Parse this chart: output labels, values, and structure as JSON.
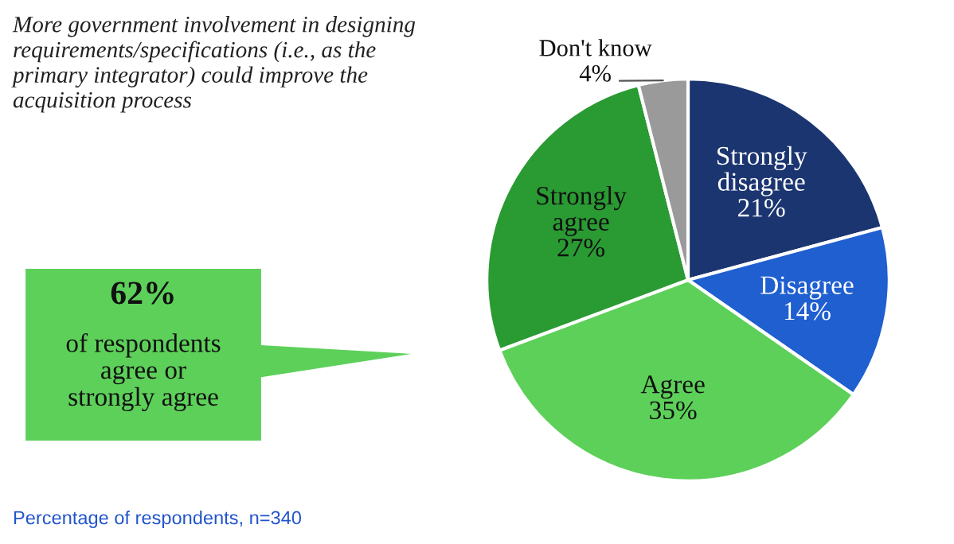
{
  "chart_data": {
    "type": "pie",
    "title": "More government involvement in designing requirements/specifications (i.e., as the primary integrator) could improve the acquisition process",
    "categories": [
      "Strongly disagree",
      "Disagree",
      "Agree",
      "Strongly agree",
      "Don't know"
    ],
    "values": [
      21,
      14,
      35,
      27,
      4
    ],
    "value_labels": [
      "21%",
      "14%",
      "35%",
      "27%",
      "4%"
    ],
    "colors": [
      "#1b3570",
      "#1f5fd0",
      "#5dd05a",
      "#2a9a33",
      "#9a9a9a"
    ],
    "annotations": [
      "62% of respondents agree or strongly agree",
      "Percentage of respondents, n=340"
    ]
  }
}
